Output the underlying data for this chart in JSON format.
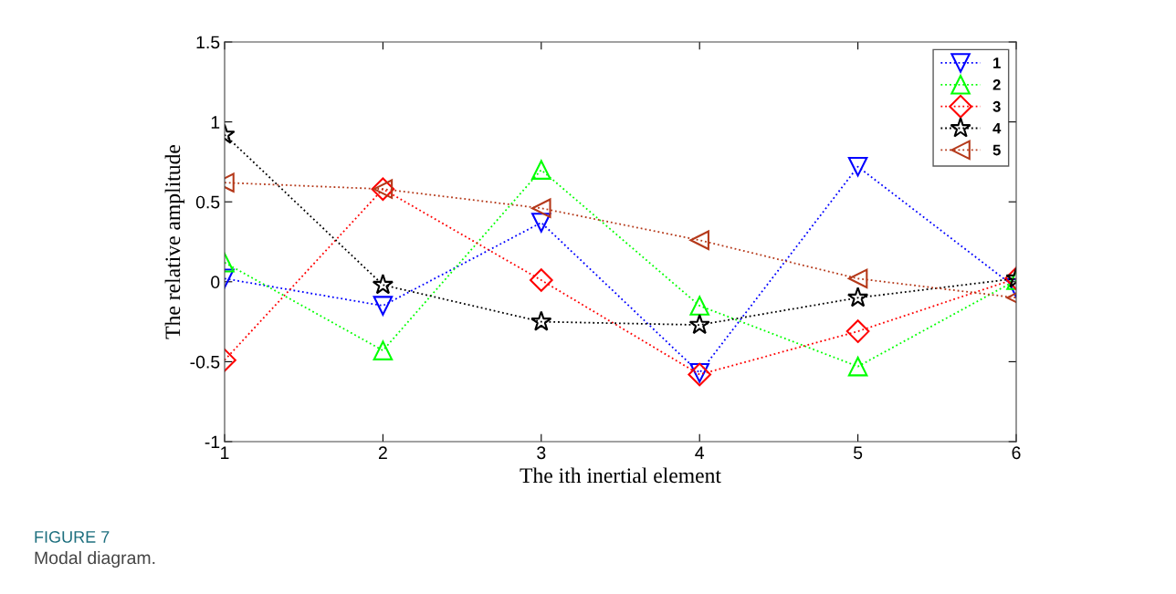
{
  "chart_data": {
    "type": "line",
    "xlabel": "The ith inertial element",
    "ylabel": "The relative amplitude",
    "x": [
      1,
      2,
      3,
      4,
      5,
      6
    ],
    "series": [
      {
        "name": "1",
        "color": "#0000ff",
        "marker": "triangle-down",
        "values": [
          0.02,
          -0.15,
          0.37,
          -0.57,
          0.72,
          -0.04
        ]
      },
      {
        "name": "2",
        "color": "#00ff00",
        "marker": "triangle",
        "values": [
          0.12,
          -0.43,
          0.7,
          -0.15,
          -0.53,
          0.01
        ]
      },
      {
        "name": "3",
        "color": "#ff0000",
        "marker": "diamond",
        "values": [
          -0.49,
          0.58,
          0.01,
          -0.58,
          -0.31,
          0.02
        ]
      },
      {
        "name": "4",
        "color": "#000000",
        "marker": "star",
        "values": [
          0.92,
          -0.02,
          -0.25,
          -0.27,
          -0.1,
          0.02
        ]
      },
      {
        "name": "5",
        "color": "#b5391a",
        "marker": "triangle-left",
        "values": [
          0.62,
          0.58,
          0.46,
          0.26,
          0.02,
          -0.1
        ]
      }
    ],
    "xlim": [
      1,
      6
    ],
    "xticks": [
      1,
      2,
      3,
      4,
      5,
      6
    ],
    "ylim": [
      -1,
      1.5
    ],
    "yticks": [
      -1,
      -0.5,
      0,
      0.5,
      1,
      1.5
    ],
    "line_style": "dotted",
    "grid": false,
    "legend": "top right",
    "annotations": [
      "FIGURE 7",
      "Modal diagram."
    ]
  }
}
